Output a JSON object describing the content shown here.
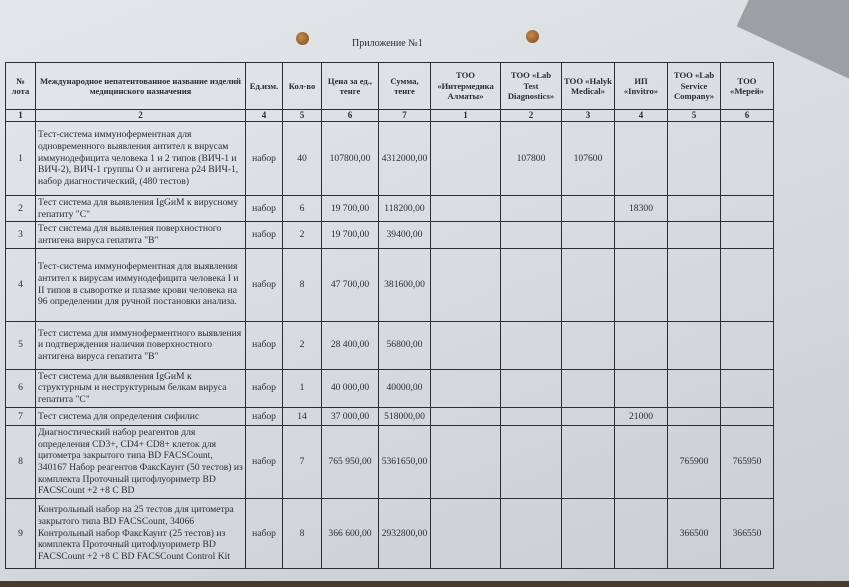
{
  "appendix_label": "Приложение №1",
  "headers": [
    "№ лота",
    "Международное непатентованное название изделий медицинского назначения",
    "Ед.изм.",
    "Кол-во",
    "Цена за ед., тенге",
    "Сумма, тенге",
    "ТОО «Интермедика Алматы»",
    "ТОО «Lab Test Diagnostics»",
    "ТОО «Halyk Medical»",
    "ИП «Invitro»",
    "ТОО «Lab Service Company»",
    "ТОО «Мерей»"
  ],
  "column_numbers": [
    "1",
    "2",
    "4",
    "5",
    "6",
    "7",
    "1",
    "2",
    "3",
    "4",
    "5",
    "6"
  ],
  "rows": [
    {
      "lot": "1",
      "name": "Тест-система иммуноферментная для одновременного выявления антител к вирусам иммунодефицита человека 1 и 2 типов (ВИЧ-1 и ВИЧ-2), ВИЧ-1 группы О и антигена р24 ВИЧ-1, набор диагностический, (480 тестов)",
      "unit": "набор",
      "qty": "40",
      "price": "107800,00",
      "sum": "4312000,00",
      "bids": [
        "",
        "107800",
        "107600",
        "",
        "",
        ""
      ]
    },
    {
      "lot": "2",
      "name": "Тест система для выявления IgGиM к вирусному гепатиту \"С\"",
      "unit": "набор",
      "qty": "6",
      "price": "19 700,00",
      "sum": "118200,00",
      "bids": [
        "",
        "",
        "",
        "18300",
        "",
        ""
      ]
    },
    {
      "lot": "3",
      "name": "Тест система для выявления поверхностного антигена вируса гепатита \"В\"",
      "unit": "набор",
      "qty": "2",
      "price": "19 700,00",
      "sum": "39400,00",
      "bids": [
        "",
        "",
        "",
        "",
        "",
        ""
      ]
    },
    {
      "lot": "4",
      "name": "Тест-система иммуноферментная для выявления антител к вирусам иммунодефицита человека I и II типов в сыворотке и плазме крови человека на 96 определении для ручной постановки анализа.",
      "unit": "набор",
      "qty": "8",
      "price": "47 700,00",
      "sum": "381600,00",
      "bids": [
        "",
        "",
        "",
        "",
        "",
        ""
      ]
    },
    {
      "lot": "5",
      "name": "Тест система для иммуноферментного выявления и подтверждения наличия поверхностного антигена вируса гепатита \"В\"",
      "unit": "набор",
      "qty": "2",
      "price": "28 400,00",
      "sum": "56800,00",
      "bids": [
        "",
        "",
        "",
        "",
        "",
        ""
      ]
    },
    {
      "lot": "6",
      "name": "Тест система для выявления IgGиM к структурным и неструктурным белкам вируса гепатита \"С\"",
      "unit": "набор",
      "qty": "1",
      "price": "40 000,00",
      "sum": "40000,00",
      "bids": [
        "",
        "",
        "",
        "",
        "",
        ""
      ]
    },
    {
      "lot": "7",
      "name": "Тест система для определения сифилис",
      "unit": "набор",
      "qty": "14",
      "price": "37 000,00",
      "sum": "518000,00",
      "bids": [
        "",
        "",
        "",
        "21000",
        "",
        ""
      ]
    },
    {
      "lot": "8",
      "name": "Диагностический набор реагентов для определения CD3+, CD4+ CD8+ клеток для цитометра закрытого типа BD FACSCount, 340167 Набор реагентов ФаксКаунт (50 тестов) из комплекта Проточный цитофлуориметр BD FACSCount +2 +8 С BD",
      "unit": "набор",
      "qty": "7",
      "price": "765 950,00",
      "sum": "5361650,00",
      "bids": [
        "",
        "",
        "",
        "",
        "765900",
        "765950"
      ]
    },
    {
      "lot": "9",
      "name": "Контрольный набор на 25 тестов для цитометра закрытого типа BD FACSCount, 34066 Контрольный набор ФаксКаунт (25 тестов) из комплекта Проточный цитофлуориметр BD FACSCount +2 +8 С BD FACSCount Control Kit",
      "unit": "набор",
      "qty": "8",
      "price": "366 600,00",
      "sum": "2932800,00",
      "bids": [
        "",
        "",
        "",
        "",
        "366500",
        "366550"
      ]
    }
  ]
}
